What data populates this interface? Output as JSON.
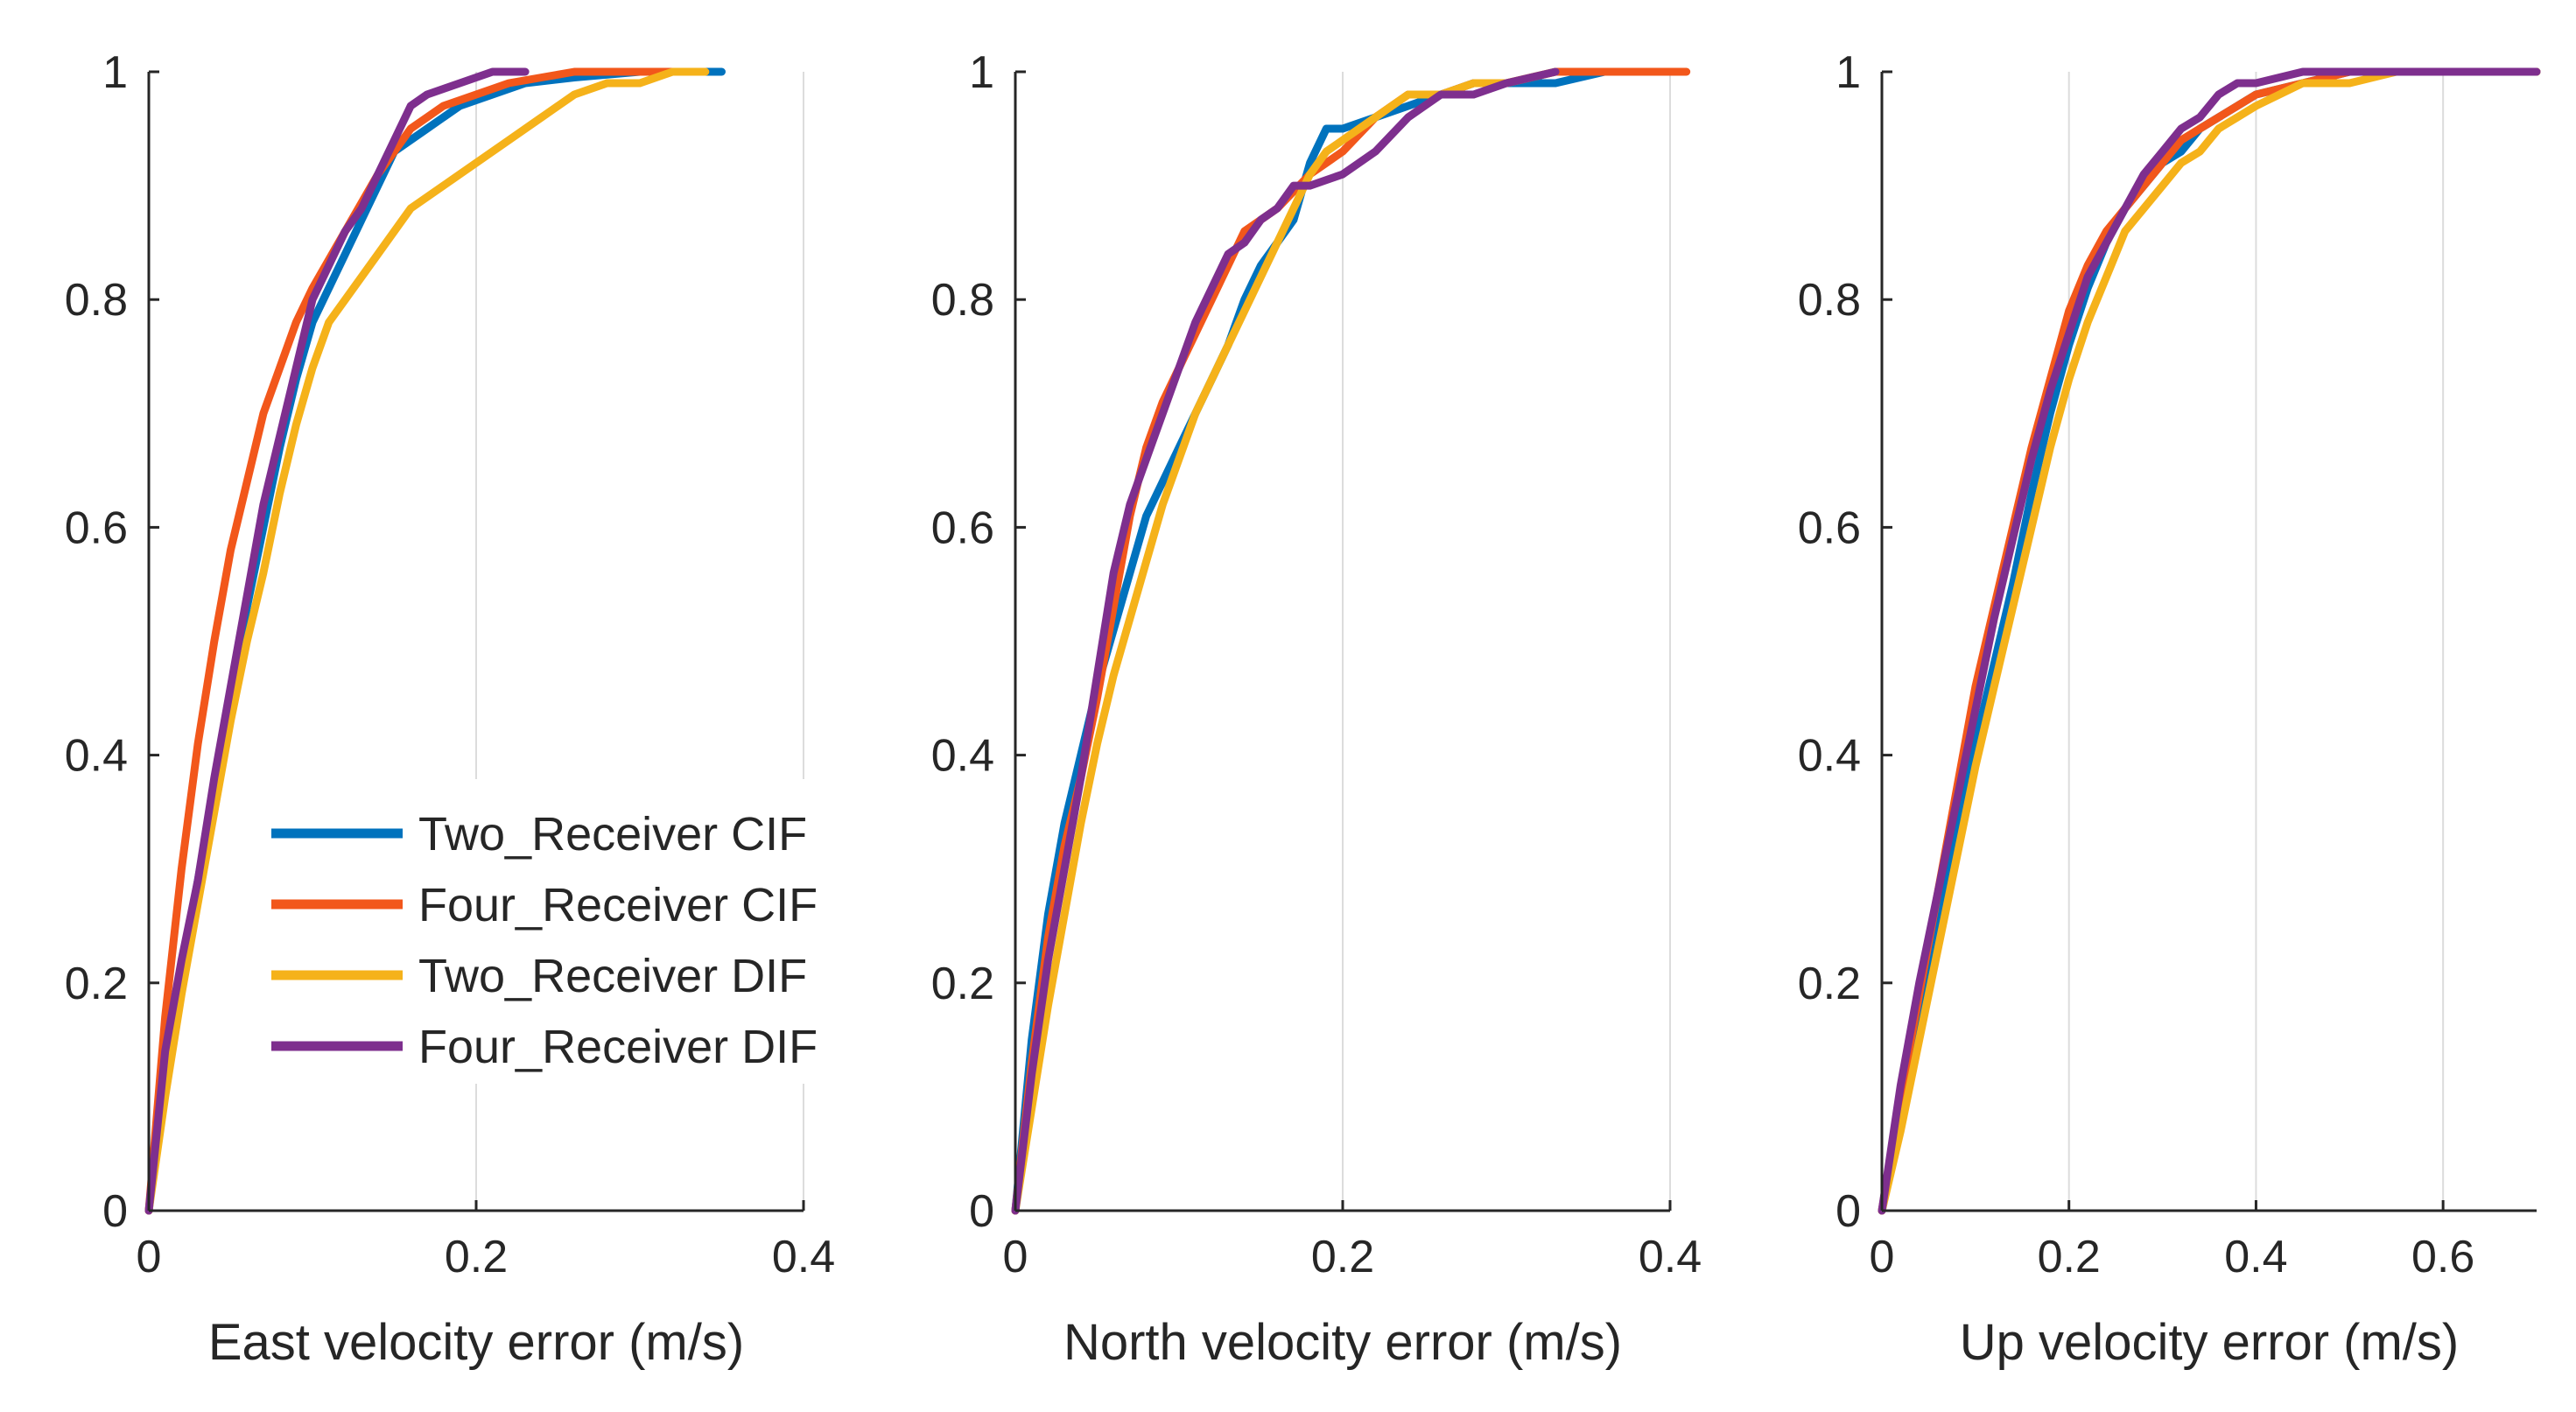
{
  "colors": {
    "series": [
      "#0072BD",
      "#F2571B",
      "#F5B21A",
      "#7E2F8E"
    ],
    "axis": "#262626",
    "grid": "#dcdcdc"
  },
  "chart_data": [
    {
      "type": "line",
      "title": "",
      "xlabel": "East velocity error (m/s)",
      "ylabel": "",
      "xlim": [
        0,
        0.4
      ],
      "ylim": [
        0,
        1
      ],
      "xticks": [
        "0",
        "0.2",
        "0.4"
      ],
      "yticks": [
        "0",
        "0.2",
        "0.4",
        "0.6",
        "0.8",
        "1"
      ],
      "grid": "x",
      "legend_position": "bottom-right",
      "series": [
        {
          "name": "Two_Receiver CIF",
          "x": [
            0,
            0.01,
            0.02,
            0.03,
            0.04,
            0.05,
            0.06,
            0.07,
            0.08,
            0.09,
            0.1,
            0.11,
            0.12,
            0.13,
            0.14,
            0.15,
            0.17,
            0.19,
            0.21,
            0.23,
            0.26,
            0.3,
            0.35
          ],
          "y": [
            0,
            0.12,
            0.21,
            0.29,
            0.37,
            0.45,
            0.53,
            0.6,
            0.67,
            0.73,
            0.78,
            0.81,
            0.84,
            0.87,
            0.9,
            0.93,
            0.95,
            0.97,
            0.98,
            0.99,
            0.995,
            1,
            1
          ]
        },
        {
          "name": "Four_Receiver CIF",
          "x": [
            0,
            0.01,
            0.02,
            0.03,
            0.04,
            0.05,
            0.06,
            0.07,
            0.08,
            0.09,
            0.1,
            0.12,
            0.14,
            0.16,
            0.18,
            0.2,
            0.22,
            0.24,
            0.26,
            0.28,
            0.3,
            0.34
          ],
          "y": [
            0,
            0.17,
            0.3,
            0.41,
            0.5,
            0.58,
            0.64,
            0.7,
            0.74,
            0.78,
            0.81,
            0.86,
            0.91,
            0.95,
            0.97,
            0.98,
            0.99,
            0.995,
            1,
            1,
            1,
            1
          ]
        },
        {
          "name": "Two_Receiver DIF",
          "x": [
            0,
            0.01,
            0.02,
            0.03,
            0.04,
            0.05,
            0.06,
            0.07,
            0.08,
            0.09,
            0.1,
            0.11,
            0.12,
            0.13,
            0.14,
            0.16,
            0.18,
            0.19,
            0.2,
            0.22,
            0.24,
            0.26,
            0.28,
            0.3,
            0.32,
            0.34
          ],
          "y": [
            0,
            0.1,
            0.19,
            0.27,
            0.35,
            0.43,
            0.5,
            0.56,
            0.63,
            0.69,
            0.74,
            0.78,
            0.8,
            0.82,
            0.84,
            0.88,
            0.9,
            0.91,
            0.92,
            0.94,
            0.96,
            0.98,
            0.99,
            0.99,
            1,
            1
          ]
        },
        {
          "name": "Four_Receiver DIF",
          "x": [
            0,
            0.01,
            0.02,
            0.03,
            0.04,
            0.05,
            0.06,
            0.07,
            0.08,
            0.09,
            0.1,
            0.11,
            0.12,
            0.13,
            0.14,
            0.15,
            0.16,
            0.17,
            0.18,
            0.19,
            0.2,
            0.21,
            0.22,
            0.23
          ],
          "y": [
            0,
            0.14,
            0.22,
            0.29,
            0.38,
            0.46,
            0.54,
            0.62,
            0.68,
            0.74,
            0.8,
            0.83,
            0.86,
            0.88,
            0.91,
            0.94,
            0.97,
            0.98,
            0.985,
            0.99,
            0.995,
            1,
            1,
            1
          ]
        }
      ]
    },
    {
      "type": "line",
      "title": "",
      "xlabel": "North velocity error (m/s)",
      "ylabel": "",
      "xlim": [
        0,
        0.4
      ],
      "ylim": [
        0,
        1
      ],
      "xticks": [
        "0",
        "0.2",
        "0.4"
      ],
      "yticks": [
        "0",
        "0.2",
        "0.4",
        "0.6",
        "0.8",
        "1"
      ],
      "grid": "x",
      "series": [
        {
          "name": "Two_Receiver CIF",
          "x": [
            0,
            0.01,
            0.02,
            0.03,
            0.04,
            0.05,
            0.06,
            0.07,
            0.08,
            0.09,
            0.1,
            0.11,
            0.12,
            0.13,
            0.14,
            0.15,
            0.16,
            0.17,
            0.18,
            0.19,
            0.2,
            0.22,
            0.24,
            0.26,
            0.28,
            0.3,
            0.33,
            0.36,
            0.38,
            0.4
          ],
          "y": [
            0,
            0.15,
            0.26,
            0.34,
            0.4,
            0.46,
            0.51,
            0.56,
            0.61,
            0.64,
            0.67,
            0.7,
            0.73,
            0.76,
            0.8,
            0.83,
            0.85,
            0.87,
            0.92,
            0.95,
            0.95,
            0.96,
            0.97,
            0.98,
            0.99,
            0.99,
            0.99,
            1,
            1,
            1
          ]
        },
        {
          "name": "Four_Receiver CIF",
          "x": [
            0,
            0.01,
            0.02,
            0.03,
            0.04,
            0.05,
            0.06,
            0.07,
            0.08,
            0.09,
            0.1,
            0.12,
            0.14,
            0.16,
            0.18,
            0.2,
            0.22,
            0.24,
            0.26,
            0.28,
            0.3,
            0.33,
            0.36,
            0.38,
            0.41
          ],
          "y": [
            0,
            0.13,
            0.24,
            0.32,
            0.38,
            0.45,
            0.53,
            0.61,
            0.67,
            0.71,
            0.74,
            0.8,
            0.86,
            0.88,
            0.91,
            0.93,
            0.96,
            0.98,
            0.98,
            0.99,
            0.99,
            1,
            1,
            1,
            1
          ]
        },
        {
          "name": "Two_Receiver DIF",
          "x": [
            0,
            0.01,
            0.02,
            0.03,
            0.04,
            0.05,
            0.06,
            0.07,
            0.08,
            0.09,
            0.1,
            0.11,
            0.12,
            0.13,
            0.14,
            0.15,
            0.16,
            0.17,
            0.18,
            0.19,
            0.2,
            0.22,
            0.24,
            0.26,
            0.28,
            0.3,
            0.33
          ],
          "y": [
            0,
            0.09,
            0.18,
            0.26,
            0.34,
            0.41,
            0.47,
            0.52,
            0.57,
            0.62,
            0.66,
            0.7,
            0.73,
            0.76,
            0.79,
            0.82,
            0.85,
            0.88,
            0.91,
            0.93,
            0.94,
            0.96,
            0.98,
            0.98,
            0.99,
            0.99,
            1
          ]
        },
        {
          "name": "Four_Receiver DIF",
          "x": [
            0,
            0.01,
            0.02,
            0.03,
            0.04,
            0.05,
            0.06,
            0.07,
            0.08,
            0.09,
            0.1,
            0.11,
            0.12,
            0.13,
            0.14,
            0.15,
            0.16,
            0.17,
            0.18,
            0.2,
            0.22,
            0.24,
            0.26,
            0.28,
            0.3,
            0.33
          ],
          "y": [
            0,
            0.12,
            0.22,
            0.3,
            0.38,
            0.47,
            0.56,
            0.62,
            0.66,
            0.7,
            0.74,
            0.78,
            0.81,
            0.84,
            0.85,
            0.87,
            0.88,
            0.9,
            0.9,
            0.91,
            0.93,
            0.96,
            0.98,
            0.98,
            0.99,
            1
          ]
        }
      ]
    },
    {
      "type": "line",
      "title": "",
      "xlabel": "Up velocity error (m/s)",
      "ylabel": "",
      "xlim": [
        0,
        0.7
      ],
      "ylim": [
        0,
        1
      ],
      "xticks": [
        "0",
        "0.2",
        "0.4",
        "0.6"
      ],
      "yticks": [
        "0",
        "0.2",
        "0.4",
        "0.6",
        "0.8",
        "1"
      ],
      "grid": "x",
      "series": [
        {
          "name": "Two_Receiver CIF",
          "x": [
            0,
            0.02,
            0.04,
            0.06,
            0.08,
            0.1,
            0.12,
            0.14,
            0.16,
            0.18,
            0.2,
            0.22,
            0.24,
            0.26,
            0.28,
            0.3,
            0.32,
            0.34,
            0.36,
            0.38,
            0.4,
            0.45,
            0.5,
            0.55,
            0.6,
            0.7
          ],
          "y": [
            0,
            0.08,
            0.16,
            0.25,
            0.33,
            0.41,
            0.48,
            0.55,
            0.63,
            0.7,
            0.76,
            0.81,
            0.85,
            0.88,
            0.9,
            0.92,
            0.93,
            0.95,
            0.96,
            0.97,
            0.98,
            0.99,
            1,
            1,
            1,
            1
          ]
        },
        {
          "name": "Four_Receiver CIF",
          "x": [
            0,
            0.02,
            0.04,
            0.06,
            0.08,
            0.1,
            0.12,
            0.14,
            0.16,
            0.18,
            0.2,
            0.22,
            0.24,
            0.26,
            0.28,
            0.3,
            0.32,
            0.34,
            0.36,
            0.38,
            0.4,
            0.45,
            0.5,
            0.55,
            0.6,
            0.7
          ],
          "y": [
            0,
            0.1,
            0.19,
            0.28,
            0.37,
            0.46,
            0.53,
            0.6,
            0.67,
            0.73,
            0.79,
            0.83,
            0.86,
            0.88,
            0.9,
            0.92,
            0.94,
            0.95,
            0.96,
            0.97,
            0.98,
            0.99,
            1,
            1,
            1,
            1
          ]
        },
        {
          "name": "Two_Receiver DIF",
          "x": [
            0,
            0.02,
            0.04,
            0.06,
            0.08,
            0.1,
            0.12,
            0.14,
            0.16,
            0.18,
            0.2,
            0.22,
            0.24,
            0.26,
            0.28,
            0.3,
            0.32,
            0.34,
            0.36,
            0.38,
            0.4,
            0.45,
            0.5,
            0.55,
            0.6,
            0.7
          ],
          "y": [
            0,
            0.07,
            0.15,
            0.23,
            0.31,
            0.39,
            0.46,
            0.53,
            0.6,
            0.67,
            0.73,
            0.78,
            0.82,
            0.86,
            0.88,
            0.9,
            0.92,
            0.93,
            0.95,
            0.96,
            0.97,
            0.99,
            0.99,
            1,
            1,
            1
          ]
        },
        {
          "name": "Four_Receiver DIF",
          "x": [
            0,
            0.02,
            0.04,
            0.06,
            0.08,
            0.1,
            0.12,
            0.14,
            0.16,
            0.18,
            0.2,
            0.22,
            0.24,
            0.26,
            0.28,
            0.3,
            0.32,
            0.34,
            0.36,
            0.38,
            0.4,
            0.45,
            0.5,
            0.55,
            0.6,
            0.7
          ],
          "y": [
            0,
            0.11,
            0.2,
            0.28,
            0.36,
            0.44,
            0.52,
            0.59,
            0.66,
            0.72,
            0.77,
            0.82,
            0.85,
            0.88,
            0.91,
            0.93,
            0.95,
            0.96,
            0.98,
            0.99,
            0.99,
            1,
            1,
            1,
            1,
            1
          ]
        }
      ]
    }
  ]
}
